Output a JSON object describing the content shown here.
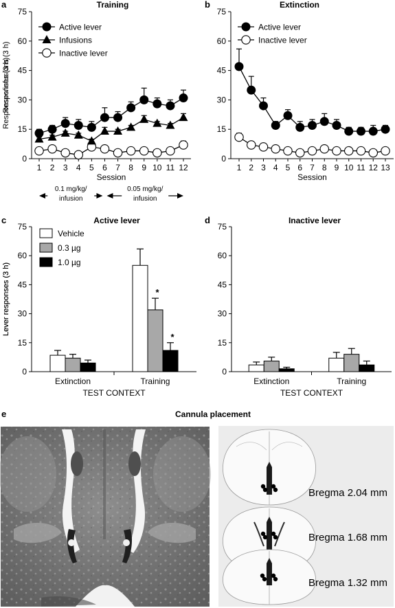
{
  "figure": {
    "panel_e": {
      "letter": "e",
      "title": "Cannula placement",
      "bregma_labels": [
        "Bregma 2.04 mm",
        "Bregma 1.68 mm",
        "Bregma 1.32 mm"
      ]
    }
  },
  "chart_data": [
    {
      "panel": "a",
      "type": "line",
      "title": "Training",
      "xlabel": "Session",
      "ylabel": "Responses/infusions (3 h)",
      "x": [
        1,
        2,
        3,
        4,
        5,
        6,
        7,
        8,
        9,
        10,
        11,
        12
      ],
      "ylim": [
        0,
        75
      ],
      "yticks": [
        0,
        15,
        30,
        45,
        60,
        75
      ],
      "legend_position": "top-left",
      "series": [
        {
          "name": "Active lever",
          "marker": "filled-circle",
          "values": [
            13,
            15,
            18,
            17,
            16,
            21,
            21,
            26,
            30,
            28,
            27,
            31
          ],
          "errors": [
            2,
            2,
            3,
            3,
            3,
            5,
            3,
            3,
            6,
            3,
            3,
            4
          ]
        },
        {
          "name": "Infusions",
          "marker": "filled-triangle",
          "values": [
            10,
            11,
            13,
            12,
            9,
            14,
            14,
            16,
            20,
            18,
            17,
            21
          ],
          "errors": [
            1,
            1,
            1,
            1,
            1,
            2,
            1,
            1,
            2,
            1,
            1,
            2
          ]
        },
        {
          "name": "Inactive lever",
          "marker": "open-circle",
          "values": [
            4,
            5,
            3,
            2,
            6,
            5,
            3,
            4,
            4,
            3,
            4,
            7
          ],
          "errors": [
            1,
            1,
            1,
            1,
            2,
            1,
            1,
            1,
            1,
            1,
            1,
            2
          ]
        }
      ],
      "dose_annotations": [
        {
          "label": "0.1 mg/kg/\ninfusion",
          "from_session": 1,
          "to_session": 6
        },
        {
          "label": "0.05 mg/kg/\ninfusion",
          "from_session": 6,
          "to_session": 12
        }
      ]
    },
    {
      "panel": "b",
      "type": "line",
      "title": "Extinction",
      "xlabel": "Session",
      "ylabel": "Responses (3 h)",
      "x": [
        1,
        2,
        3,
        4,
        5,
        6,
        7,
        8,
        9,
        10,
        11,
        12,
        13
      ],
      "ylim": [
        0,
        75
      ],
      "yticks": [
        0,
        15,
        30,
        45,
        60,
        75
      ],
      "legend_position": "top-left",
      "series": [
        {
          "name": "Active lever",
          "marker": "filled-circle",
          "values": [
            47,
            35,
            27,
            17,
            22,
            16,
            17,
            19,
            17,
            14,
            14,
            14,
            15
          ],
          "errors": [
            9,
            7,
            4,
            2,
            3,
            3,
            3,
            4,
            3,
            2,
            2,
            3,
            2
          ]
        },
        {
          "name": "Inactive lever",
          "marker": "open-circle",
          "values": [
            11,
            7,
            6,
            5,
            4,
            3,
            4,
            5,
            4,
            4,
            4,
            3,
            4
          ],
          "errors": [
            2,
            1,
            1,
            1,
            1,
            1,
            1,
            1,
            1,
            1,
            1,
            1,
            1
          ]
        }
      ]
    },
    {
      "panel": "c",
      "type": "bar",
      "title": "Active lever",
      "xlabel": "TEST CONTEXT",
      "ylabel": "Lever responses (3 h)",
      "categories": [
        "Extinction",
        "Training"
      ],
      "ylim": [
        0,
        75
      ],
      "yticks": [
        0,
        15,
        30,
        45,
        60,
        75
      ],
      "legend_position": "top-left",
      "series": [
        {
          "name": "Vehicle",
          "fill": "#ffffff",
          "values": [
            8.5,
            55
          ],
          "errors": [
            2.5,
            8.5
          ]
        },
        {
          "name": "0.3 µg",
          "fill": "#a8a8a8",
          "values": [
            7,
            32
          ],
          "errors": [
            2,
            6
          ]
        },
        {
          "name": "1.0 µg",
          "fill": "#000000",
          "values": [
            4.5,
            11
          ],
          "errors": [
            1.5,
            4
          ]
        }
      ],
      "annotations": [
        "*",
        "*"
      ]
    },
    {
      "panel": "d",
      "type": "bar",
      "title": "Inactive lever",
      "xlabel": "TEST CONTEXT",
      "ylabel": "Lever responses (3 h)",
      "categories": [
        "Extinction",
        "Training"
      ],
      "ylim": [
        0,
        75
      ],
      "yticks": [
        0,
        15,
        30,
        45,
        60,
        75
      ],
      "series": [
        {
          "name": "Vehicle",
          "fill": "#ffffff",
          "values": [
            3.5,
            7
          ],
          "errors": [
            1.5,
            3
          ]
        },
        {
          "name": "0.3 µg",
          "fill": "#a8a8a8",
          "values": [
            5.5,
            9
          ],
          "errors": [
            2,
            3
          ]
        },
        {
          "name": "1.0 µg",
          "fill": "#000000",
          "values": [
            1.5,
            3.5
          ],
          "errors": [
            0.8,
            2
          ]
        }
      ]
    }
  ]
}
